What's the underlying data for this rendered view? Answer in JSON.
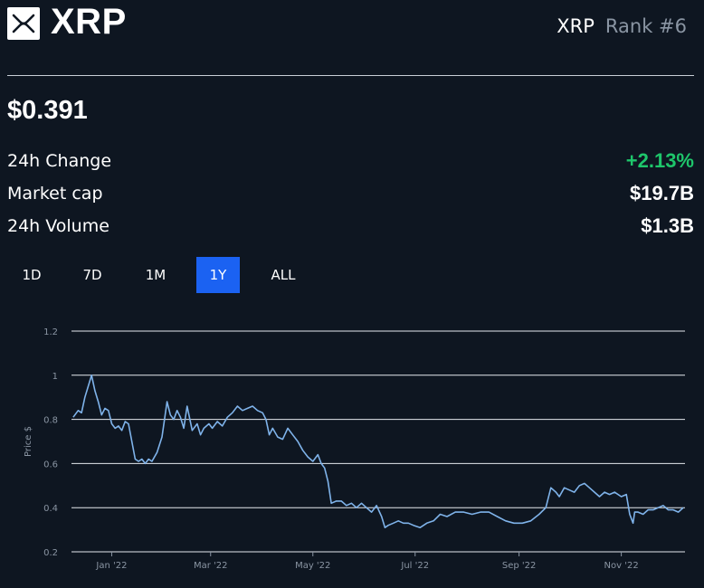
{
  "header": {
    "title": "XRP",
    "symbol": "XRP",
    "rank": "Rank #6",
    "logo_icon": "xrp-logo-icon"
  },
  "price": "$0.391",
  "stats": [
    {
      "label": "24h Change",
      "value": "+2.13%",
      "color": "#1ec66b"
    },
    {
      "label": "Market cap",
      "value": "$19.7B"
    },
    {
      "label": "24h Volume",
      "value": "$1.3B"
    }
  ],
  "ranges": {
    "options": [
      "1D",
      "7D",
      "1M",
      "1Y",
      "ALL"
    ],
    "selected": "1Y"
  },
  "colors": {
    "background": "#0e1621",
    "accent": "#1b62f2",
    "line": "#7fb3ea",
    "positive": "#1ec66b",
    "rank": "#8a95a3"
  },
  "chart_data": {
    "type": "line",
    "ylabel": "Price $",
    "ylim": [
      0.2,
      1.2
    ],
    "yticks": [
      0.2,
      0.4,
      0.6,
      0.8,
      1,
      1.2
    ],
    "ytick_labels": [
      "0.2",
      "0.4",
      "0.6",
      "0.8",
      "1",
      "1.2"
    ],
    "xlim": [
      "2021-12-08",
      "2022-12-09"
    ],
    "xticks": [
      "2022-01-01",
      "2022-03-01",
      "2022-05-01",
      "2022-07-01",
      "2022-09-01",
      "2022-11-01"
    ],
    "xtick_labels": [
      "Jan '22",
      "Mar '22",
      "May '22",
      "Jul '22",
      "Sep '22",
      "Nov '22"
    ],
    "grid": true,
    "legend": "none",
    "series": [
      {
        "x": [
          "2021-12-09",
          "2021-12-12",
          "2021-12-14",
          "2021-12-16",
          "2021-12-18",
          "2021-12-20",
          "2021-12-22",
          "2021-12-24",
          "2021-12-26",
          "2021-12-28",
          "2021-12-30",
          "2022-01-01",
          "2022-01-03",
          "2022-01-05",
          "2022-01-07",
          "2022-01-09",
          "2022-01-11",
          "2022-01-13",
          "2022-01-15",
          "2022-01-17",
          "2022-01-19",
          "2022-01-21",
          "2022-01-23",
          "2022-01-25",
          "2022-01-28",
          "2022-01-31",
          "2022-02-03",
          "2022-02-05",
          "2022-02-07",
          "2022-02-09",
          "2022-02-11",
          "2022-02-13",
          "2022-02-15",
          "2022-02-18",
          "2022-02-21",
          "2022-02-23",
          "2022-02-25",
          "2022-02-28",
          "2022-03-02",
          "2022-03-05",
          "2022-03-08",
          "2022-03-11",
          "2022-03-14",
          "2022-03-17",
          "2022-03-20",
          "2022-03-23",
          "2022-03-26",
          "2022-03-29",
          "2022-04-01",
          "2022-04-03",
          "2022-04-05",
          "2022-04-07",
          "2022-04-10",
          "2022-04-13",
          "2022-04-16",
          "2022-04-19",
          "2022-04-22",
          "2022-04-25",
          "2022-04-28",
          "2022-05-01",
          "2022-05-04",
          "2022-05-06",
          "2022-05-08",
          "2022-05-10",
          "2022-05-12",
          "2022-05-15",
          "2022-05-18",
          "2022-05-21",
          "2022-05-24",
          "2022-05-27",
          "2022-05-30",
          "2022-06-02",
          "2022-06-05",
          "2022-06-08",
          "2022-06-11",
          "2022-06-13",
          "2022-06-15",
          "2022-06-18",
          "2022-06-21",
          "2022-06-24",
          "2022-06-27",
          "2022-06-30",
          "2022-07-04",
          "2022-07-08",
          "2022-07-12",
          "2022-07-16",
          "2022-07-20",
          "2022-07-25",
          "2022-07-30",
          "2022-08-04",
          "2022-08-09",
          "2022-08-14",
          "2022-08-19",
          "2022-08-24",
          "2022-08-29",
          "2022-09-03",
          "2022-09-08",
          "2022-09-13",
          "2022-09-17",
          "2022-09-20",
          "2022-09-23",
          "2022-09-25",
          "2022-09-28",
          "2022-10-01",
          "2022-10-04",
          "2022-10-07",
          "2022-10-10",
          "2022-10-13",
          "2022-10-16",
          "2022-10-19",
          "2022-10-22",
          "2022-10-25",
          "2022-10-28",
          "2022-11-01",
          "2022-11-04",
          "2022-11-06",
          "2022-11-08",
          "2022-11-09",
          "2022-11-11",
          "2022-11-14",
          "2022-11-17",
          "2022-11-20",
          "2022-11-23",
          "2022-11-26",
          "2022-11-29",
          "2022-12-02",
          "2022-12-05",
          "2022-12-08"
        ],
        "values": [
          0.81,
          0.84,
          0.83,
          0.9,
          0.95,
          1.0,
          0.93,
          0.88,
          0.82,
          0.85,
          0.84,
          0.78,
          0.76,
          0.77,
          0.75,
          0.79,
          0.78,
          0.7,
          0.62,
          0.61,
          0.62,
          0.6,
          0.62,
          0.61,
          0.65,
          0.72,
          0.88,
          0.82,
          0.8,
          0.84,
          0.81,
          0.76,
          0.86,
          0.75,
          0.78,
          0.73,
          0.76,
          0.78,
          0.76,
          0.79,
          0.77,
          0.81,
          0.83,
          0.86,
          0.84,
          0.85,
          0.86,
          0.84,
          0.83,
          0.8,
          0.73,
          0.76,
          0.72,
          0.71,
          0.76,
          0.73,
          0.7,
          0.66,
          0.63,
          0.61,
          0.64,
          0.6,
          0.58,
          0.52,
          0.42,
          0.43,
          0.43,
          0.41,
          0.42,
          0.4,
          0.42,
          0.4,
          0.38,
          0.41,
          0.36,
          0.31,
          0.32,
          0.33,
          0.34,
          0.33,
          0.33,
          0.32,
          0.31,
          0.33,
          0.34,
          0.37,
          0.36,
          0.38,
          0.38,
          0.37,
          0.38,
          0.38,
          0.36,
          0.34,
          0.33,
          0.33,
          0.34,
          0.37,
          0.4,
          0.49,
          0.47,
          0.45,
          0.49,
          0.48,
          0.47,
          0.5,
          0.51,
          0.49,
          0.47,
          0.45,
          0.47,
          0.46,
          0.47,
          0.45,
          0.46,
          0.37,
          0.33,
          0.38,
          0.38,
          0.37,
          0.39,
          0.39,
          0.4,
          0.41,
          0.39,
          0.39,
          0.38,
          0.4
        ]
      }
    ]
  }
}
